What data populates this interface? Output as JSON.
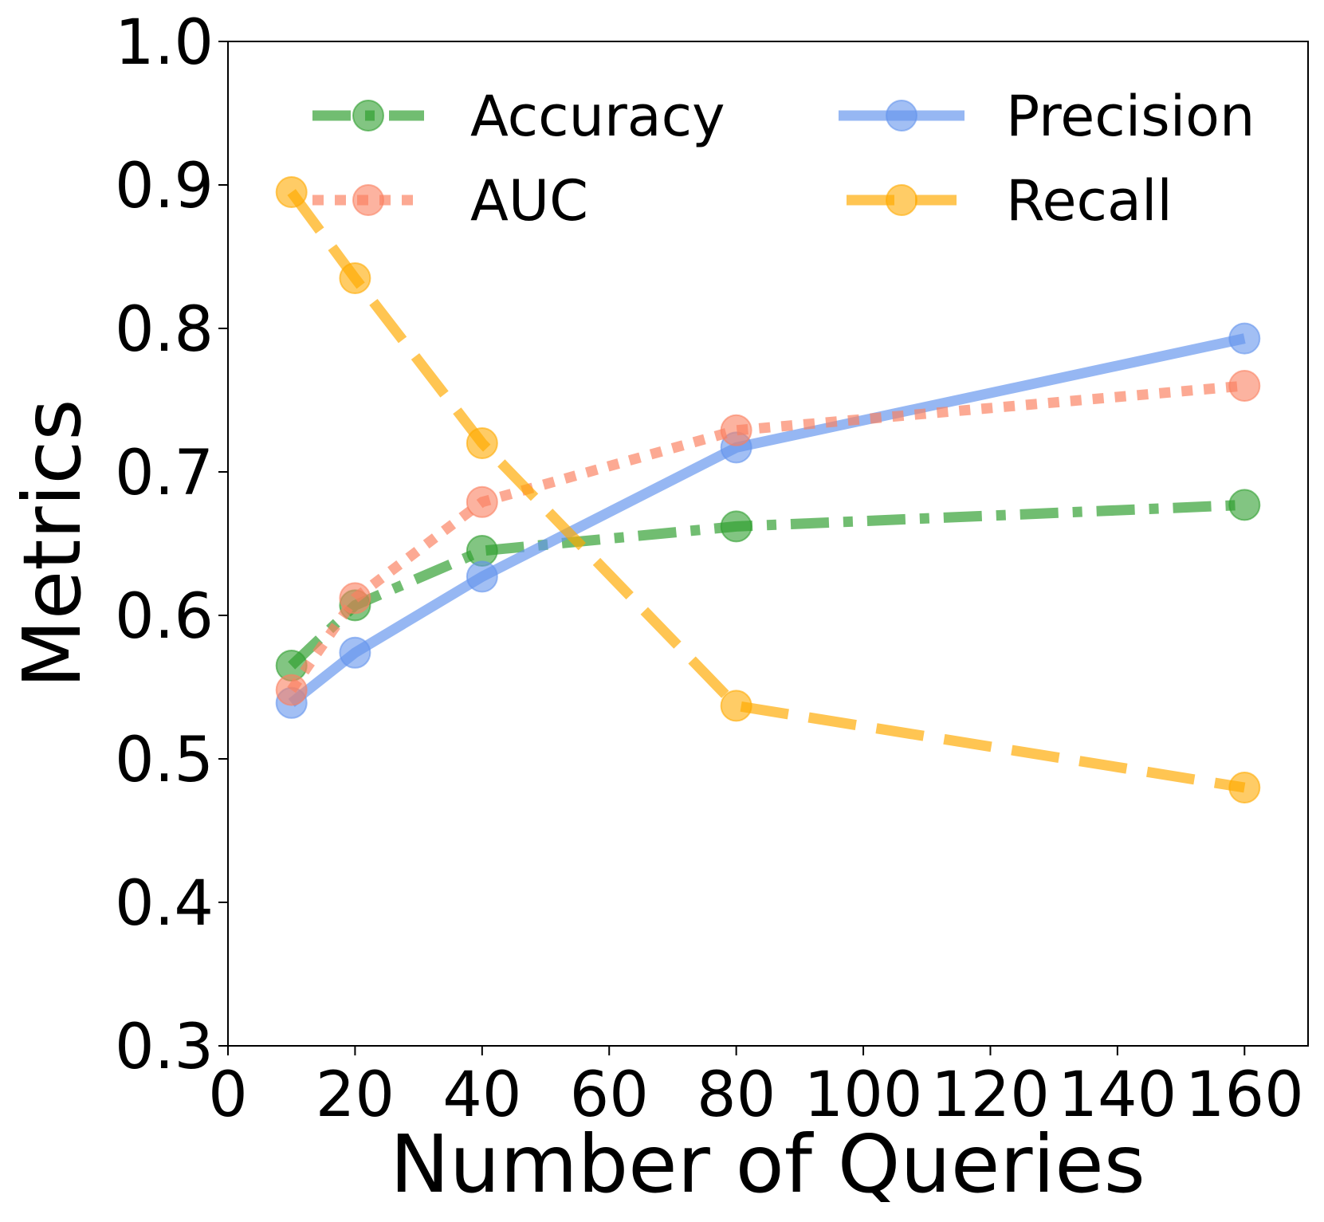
{
  "chart_data": {
    "type": "line",
    "title": "",
    "xlabel": "Number of Queries",
    "ylabel": "Metrics",
    "xlim": [
      0,
      170
    ],
    "ylim": [
      0.3,
      1.0
    ],
    "x": [
      10,
      20,
      40,
      80,
      160
    ],
    "xticks": [
      0,
      20,
      40,
      60,
      80,
      100,
      120,
      140,
      160
    ],
    "xtick_labels": [
      "0",
      "20",
      "40",
      "60",
      "80",
      "100",
      "120",
      "140",
      "160"
    ],
    "yticks": [
      0.3,
      0.4,
      0.5,
      0.6,
      0.7,
      0.8,
      0.9,
      1.0
    ],
    "ytick_labels": [
      "0.3",
      "0.4",
      "0.5",
      "0.6",
      "0.7",
      "0.8",
      "0.9",
      "1.0"
    ],
    "grid": false,
    "legend_position": "top",
    "series": [
      {
        "name": "Accuracy",
        "values": [
          0.565,
          0.607,
          0.645,
          0.662,
          0.677
        ],
        "color": "#2e9e2e",
        "linestyle": "dashdot"
      },
      {
        "name": "Precision",
        "values": [
          0.539,
          0.574,
          0.627,
          0.717,
          0.793
        ],
        "color": "#6495ed",
        "linestyle": "solid"
      },
      {
        "name": "AUC",
        "values": [
          0.548,
          0.612,
          0.679,
          0.729,
          0.76
        ],
        "color": "#fa8060",
        "linestyle": "dotted"
      },
      {
        "name": "Recall",
        "values": [
          0.895,
          0.835,
          0.72,
          0.537,
          0.48
        ],
        "color": "#ffaa00",
        "linestyle": "dashed"
      }
    ]
  }
}
